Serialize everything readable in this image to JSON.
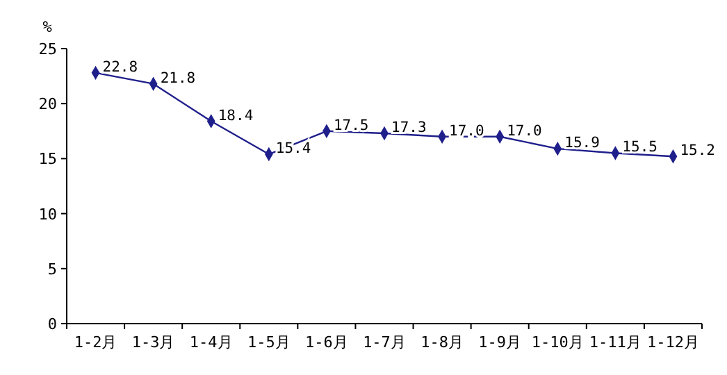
{
  "chart_data": {
    "type": "line",
    "ylabel": "%",
    "categories": [
      "1-2月",
      "1-3月",
      "1-4月",
      "1-5月",
      "1-6月",
      "1-7月",
      "1-8月",
      "1-9月",
      "1-10月",
      "1-11月",
      "1-12月"
    ],
    "series": [
      {
        "color": "#1f1f8c",
        "values": [
          22.8,
          21.8,
          18.4,
          15.4,
          17.5,
          17.3,
          17.0,
          17.0,
          15.9,
          15.5,
          15.2
        ],
        "value_labels": [
          "22.8",
          "21.8",
          "18.4",
          "15.4",
          "17.5",
          "17.3",
          "17.0",
          "17.0",
          "15.9",
          "15.5",
          "15.2"
        ]
      }
    ],
    "ylim": [
      0,
      25
    ],
    "yticks": [
      0,
      5,
      10,
      15,
      20,
      25
    ],
    "grid": false,
    "marker": "diamond",
    "line_style": "solid"
  }
}
